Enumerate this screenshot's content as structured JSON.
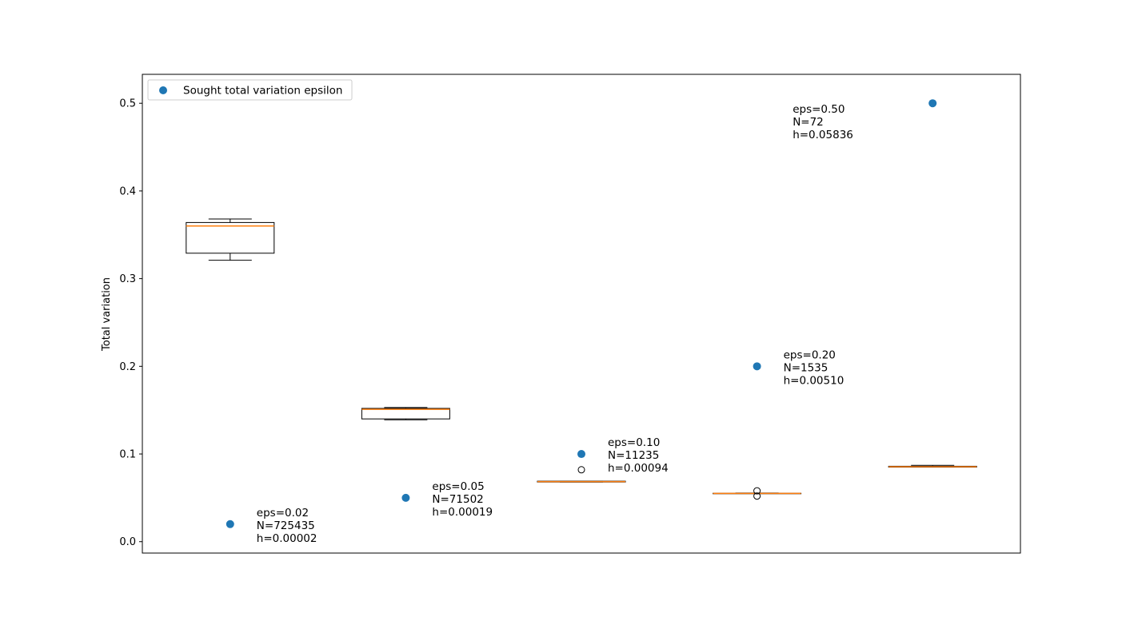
{
  "chart_data": {
    "type": "box",
    "ylabel": "Total variation",
    "ylim": [
      -0.013,
      0.533
    ],
    "yticks": [
      0.0,
      0.1,
      0.2,
      0.3,
      0.4,
      0.5
    ],
    "ytick_labels": [
      "0.0",
      "0.1",
      "0.2",
      "0.3",
      "0.4",
      "0.5"
    ],
    "xticks_visible": false,
    "grid": false,
    "legend": {
      "placement": "top-left",
      "entries": [
        {
          "label": "Sought total variation epsilon",
          "color": "#1f77b4",
          "marker": "circle"
        }
      ]
    },
    "colors": {
      "sought_point": "#1f77b4",
      "median_line": "#ff7f0e",
      "box_edge": "#000000"
    },
    "boxes": [
      {
        "position": 1,
        "whislo": 0.321,
        "q1": 0.329,
        "median": 0.36,
        "q3": 0.364,
        "whishi": 0.368,
        "fliers": []
      },
      {
        "position": 2,
        "whislo": 0.139,
        "q1": 0.14,
        "median": 0.151,
        "q3": 0.152,
        "whishi": 0.153,
        "fliers": []
      },
      {
        "position": 3,
        "whislo": 0.068,
        "q1": 0.068,
        "median": 0.0685,
        "q3": 0.069,
        "whishi": 0.069,
        "fliers": [
          0.082
        ]
      },
      {
        "position": 4,
        "whislo": 0.055,
        "q1": 0.055,
        "median": 0.055,
        "q3": 0.0552,
        "whishi": 0.0555,
        "fliers": [
          0.052,
          0.058
        ]
      },
      {
        "position": 5,
        "whislo": 0.085,
        "q1": 0.085,
        "median": 0.0855,
        "q3": 0.086,
        "whishi": 0.087,
        "fliers": []
      }
    ],
    "sought_epsilon": {
      "name": "Sought total variation epsilon",
      "x": [
        1,
        2,
        3,
        4,
        5
      ],
      "y": [
        0.02,
        0.05,
        0.1,
        0.2,
        0.5
      ]
    },
    "annotations": [
      {
        "x": 1,
        "y": 0.02,
        "lines": [
          "eps=0.02",
          "N=725435",
          "h=0.00002"
        ]
      },
      {
        "x": 2,
        "y": 0.05,
        "lines": [
          "eps=0.05",
          "N=71502",
          "h=0.00019"
        ]
      },
      {
        "x": 3,
        "y": 0.1,
        "lines": [
          "eps=0.10",
          "N=11235",
          "h=0.00094"
        ]
      },
      {
        "x": 4,
        "y": 0.2,
        "lines": [
          "eps=0.20",
          "N=1535",
          "h=0.00510"
        ]
      },
      {
        "x": 5,
        "y": 0.5,
        "lines": [
          "eps=0.50",
          "N=72",
          "h=0.05836"
        ]
      }
    ]
  }
}
